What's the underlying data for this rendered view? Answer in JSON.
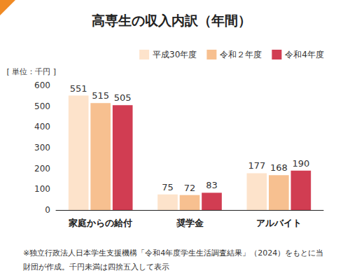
{
  "chart_data": {
    "type": "bar",
    "title": "高専生の収入内訳（年間）",
    "ylabel": "[ 単位：千円 ]",
    "note": "※独立行政法人日本学生支援機構「令和4年度学生生活調査結果」（2024）をもとに当財団が作成。千円未満は四捨五入して表示",
    "categories": [
      "家庭からの給付",
      "奨学金",
      "アルバイト"
    ],
    "series": [
      {
        "name": "平成30年度",
        "color": "#fde3cb",
        "values": [
          551,
          75,
          177
        ]
      },
      {
        "name": "令和２年度",
        "color": "#f7c090",
        "values": [
          515,
          72,
          168
        ]
      },
      {
        "name": "令和4年度",
        "color": "#d13d52",
        "values": [
          505,
          83,
          190
        ]
      }
    ],
    "ylim": [
      0,
      600
    ],
    "yticks": [
      0,
      100,
      200,
      300,
      400,
      500,
      600
    ],
    "grid": false,
    "legend": "top-right",
    "data_labels": true
  }
}
